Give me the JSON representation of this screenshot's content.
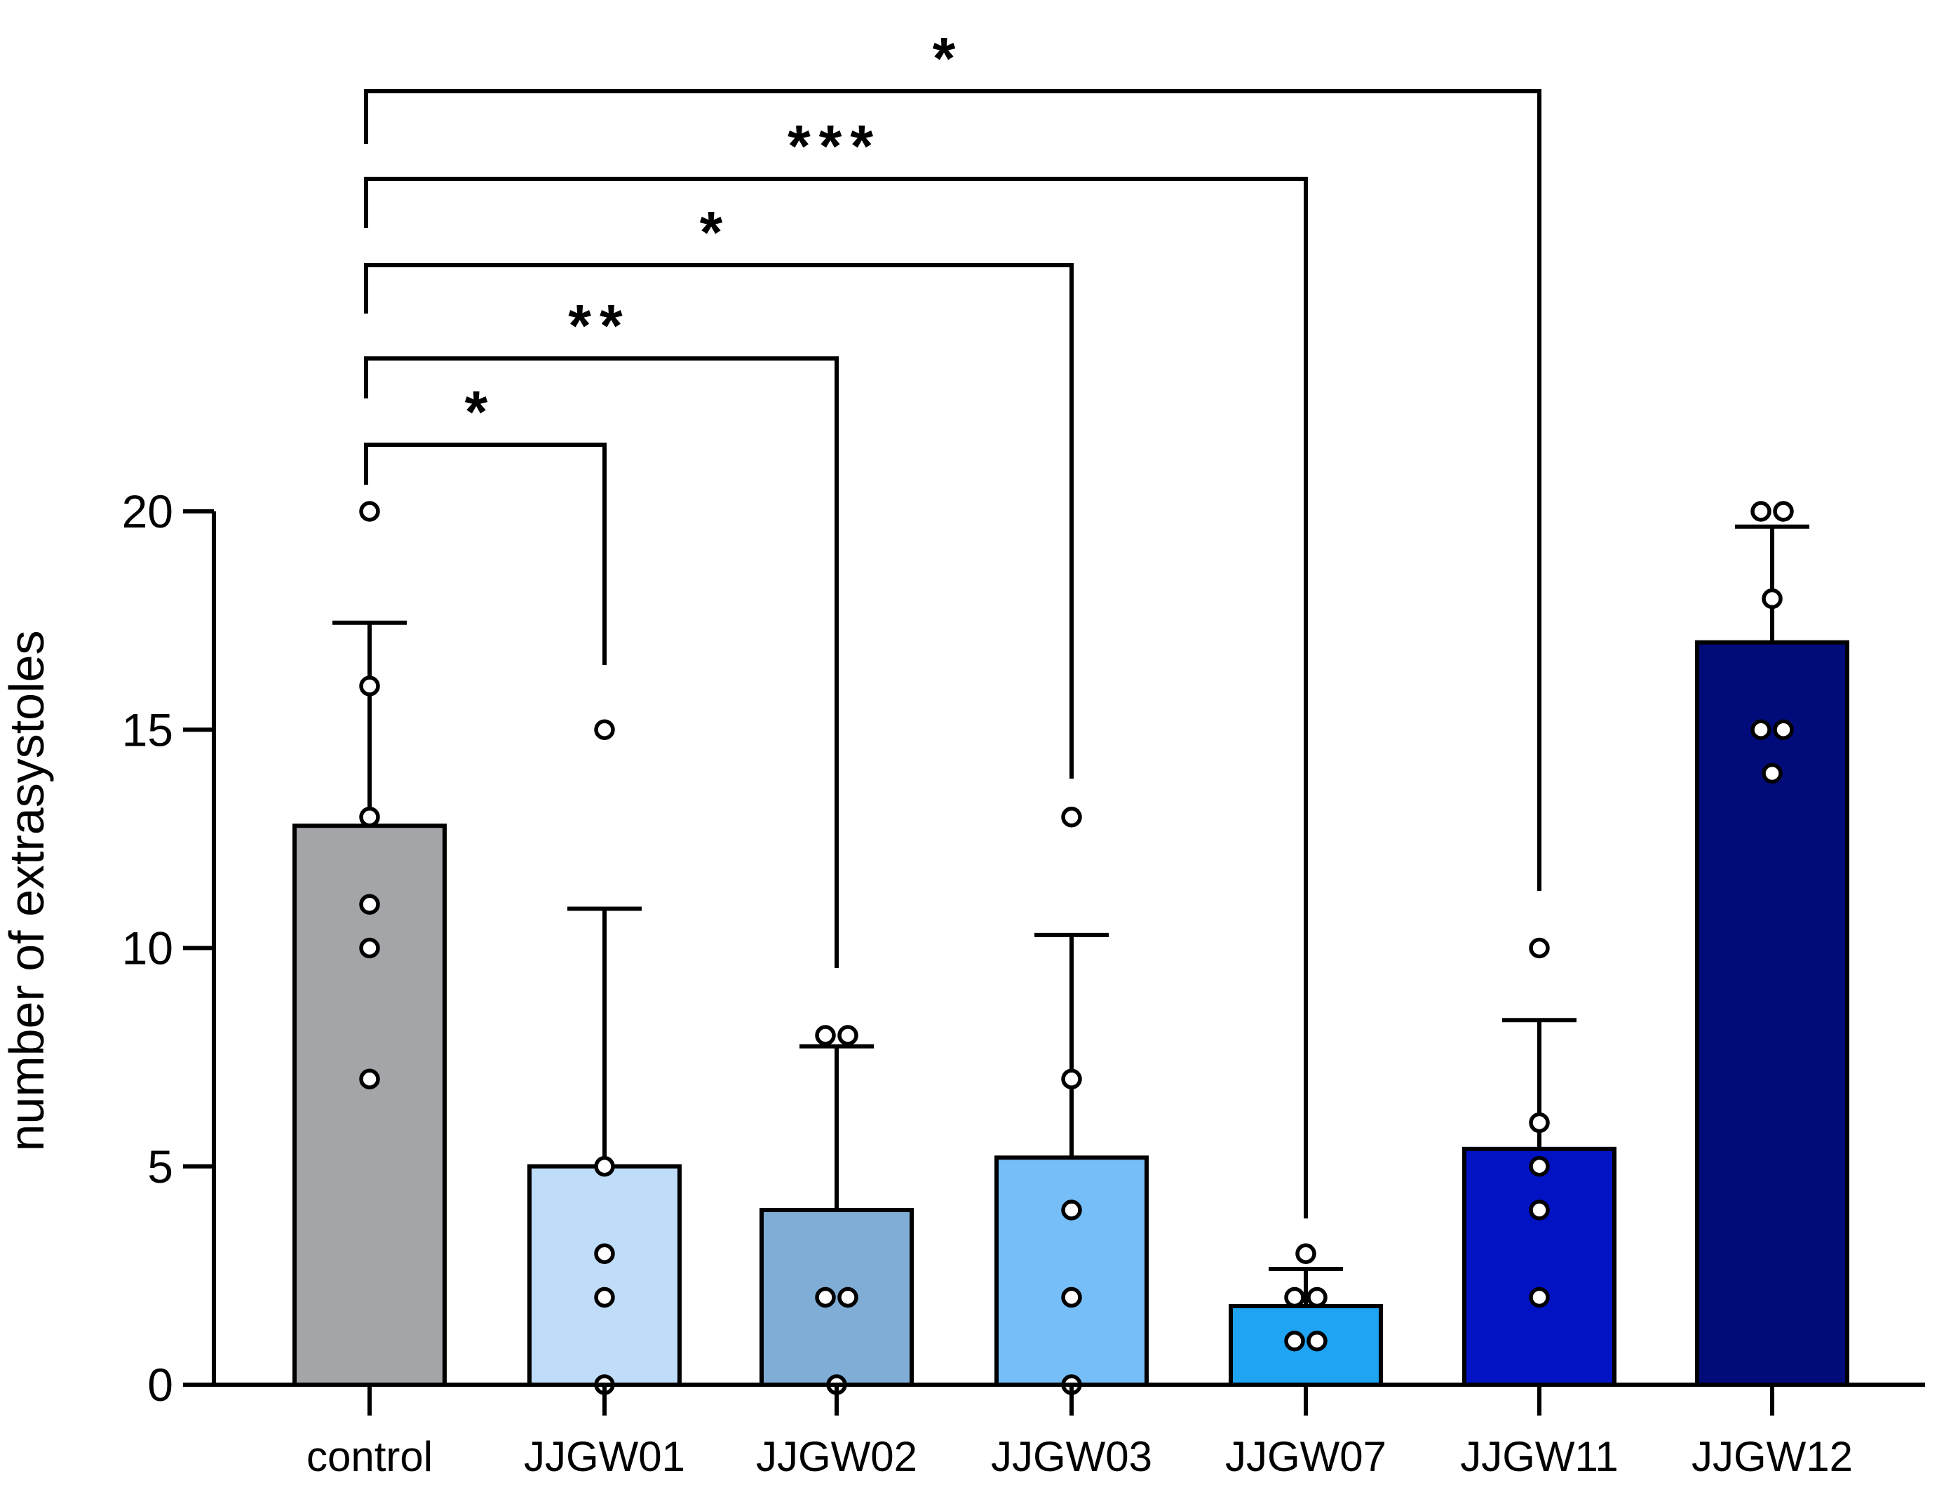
{
  "chart_data": {
    "type": "bar",
    "title": "",
    "xlabel": "",
    "ylabel": "number of extrasystoles",
    "ylim": [
      0,
      20
    ],
    "yticks": [
      0,
      5,
      10,
      15,
      20
    ],
    "grid": false,
    "legend": "none",
    "categories": [
      "control",
      "JJGW01",
      "JJGW02",
      "JJGW03",
      "JJGW07",
      "JJGW11",
      "JJGW12"
    ],
    "means": [
      12.8,
      5.0,
      4.0,
      5.2,
      1.8,
      5.4,
      17.0
    ],
    "sd_upper": [
      17.45,
      10.9,
      7.75,
      10.3,
      2.65,
      8.35,
      19.65
    ],
    "colors": [
      "#a3a5a9",
      "#bfdcf8",
      "#7fadd6",
      "#76bef7",
      "#1fa4f3",
      "#0213c4",
      "#020b7a"
    ],
    "points": [
      [
        20,
        16,
        13,
        11,
        10,
        7
      ],
      [
        15,
        5,
        3,
        2,
        0
      ],
      [
        8,
        8,
        2,
        2,
        0
      ],
      [
        13,
        7,
        4,
        2,
        0
      ],
      [
        3,
        2,
        2,
        1,
        1
      ],
      [
        10,
        6,
        5,
        4,
        2
      ],
      [
        20,
        20,
        18,
        15,
        15,
        14
      ]
    ],
    "significance": [
      {
        "from": "control",
        "to": "JJGW01",
        "label": "*"
      },
      {
        "from": "control",
        "to": "JJGW02",
        "label": "**"
      },
      {
        "from": "control",
        "to": "JJGW03",
        "label": "*"
      },
      {
        "from": "control",
        "to": "JJGW07",
        "label": "***"
      },
      {
        "from": "control",
        "to": "JJGW11",
        "label": "*"
      }
    ]
  }
}
